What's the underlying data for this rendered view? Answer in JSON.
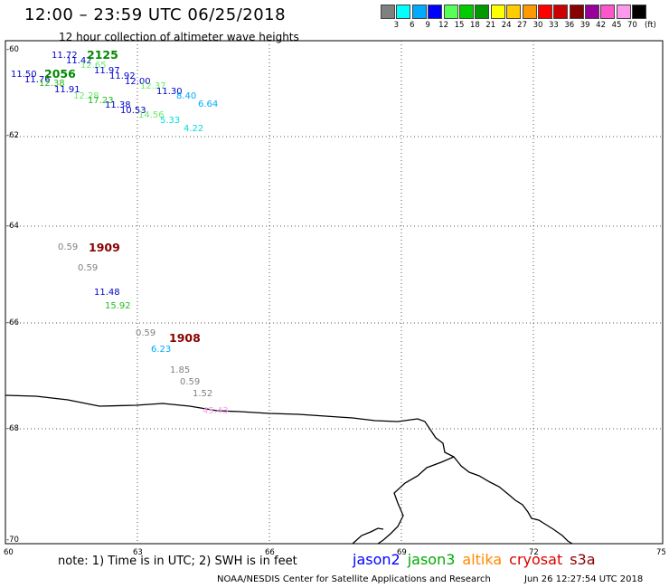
{
  "header": {
    "title": "12:00 – 23:59 UTC 06/25/2018",
    "subtitle": "12 hour collection of altimeter wave heights"
  },
  "legend": {
    "colors": [
      "#808080",
      "#00ffff",
      "#00aaff",
      "#0000ff",
      "#55ff55",
      "#00cc00",
      "#009900",
      "#ffff00",
      "#ffcc00",
      "#ff9900",
      "#ff0000",
      "#cc0000",
      "#880000",
      "#990099",
      "#ff55cc",
      "#ff99ee",
      "#000000"
    ],
    "labels": [
      "3",
      "6",
      "9",
      "12",
      "15",
      "18",
      "21",
      "24",
      "27",
      "30",
      "33",
      "36",
      "39",
      "42",
      "45",
      "70"
    ],
    "unit": "(ft)"
  },
  "axes": {
    "y_labels": [
      "-60",
      "-62",
      "-64",
      "-66",
      "-68",
      "-70"
    ],
    "x_labels": [
      "60",
      "63",
      "66",
      "69",
      "72",
      "75"
    ]
  },
  "observations": [
    {
      "t": "11.72",
      "c": "#0000cc"
    },
    {
      "t": "11.42",
      "c": "#0000cc"
    },
    {
      "t": "12.65",
      "c": "#66ee66"
    },
    {
      "t": "11.97",
      "c": "#0000cc"
    },
    {
      "t": "11.50",
      "c": "#0000cc"
    },
    {
      "t": "11.76",
      "c": "#0000cc"
    },
    {
      "t": "12.38",
      "c": "#22bb22"
    },
    {
      "t": "11.92",
      "c": "#0000cc"
    },
    {
      "t": "12.00",
      "c": "#0000cc"
    },
    {
      "t": "12.37",
      "c": "#66ee66"
    },
    {
      "t": "11.91",
      "c": "#0000cc"
    },
    {
      "t": "11.30",
      "c": "#0000cc"
    },
    {
      "t": "12.28",
      "c": "#66ee66"
    },
    {
      "t": "17.23",
      "c": "#22bb22"
    },
    {
      "t": "8.40",
      "c": "#00aaff"
    },
    {
      "t": "11.38",
      "c": "#0000cc"
    },
    {
      "t": "6.64",
      "c": "#00aaff"
    },
    {
      "t": "10.53",
      "c": "#0000cc"
    },
    {
      "t": "14.56",
      "c": "#66ee66"
    },
    {
      "t": "5.33",
      "c": "#00dddd"
    },
    {
      "t": "4.22",
      "c": "#00dddd"
    },
    {
      "t": "0.59",
      "c": "#808080"
    },
    {
      "t": "0.59",
      "c": "#808080"
    },
    {
      "t": "11.48",
      "c": "#0000cc"
    },
    {
      "t": "15.92",
      "c": "#22bb22"
    },
    {
      "t": "0.59",
      "c": "#808080"
    },
    {
      "t": "6.23",
      "c": "#00aaff"
    },
    {
      "t": "1.85",
      "c": "#808080"
    },
    {
      "t": "0.59",
      "c": "#808080"
    },
    {
      "t": "1.52",
      "c": "#808080"
    },
    {
      "t": "45.43",
      "c": "#ff99ee"
    }
  ],
  "passes": [
    {
      "t": "2125",
      "c": "#008800"
    },
    {
      "t": "2056",
      "c": "#008800"
    },
    {
      "t": "1909",
      "c": "#880000"
    },
    {
      "t": "1908",
      "c": "#880000"
    }
  ],
  "footer": {
    "note": "note:  1) Time is in UTC;  2) SWH is in feet",
    "satellites": [
      {
        "name": "jason2",
        "color": "#0000ff"
      },
      {
        "name": "jason3",
        "color": "#00aa00"
      },
      {
        "name": "altika",
        "color": "#ff8800"
      },
      {
        "name": "cryosat",
        "color": "#dd0000"
      },
      {
        "name": "s3a",
        "color": "#880000"
      }
    ],
    "credit": "NOAA/NESDIS Center for Satellite Applications and Research",
    "timestamp": "Jun 26 12:27:54 UTC 2018"
  }
}
